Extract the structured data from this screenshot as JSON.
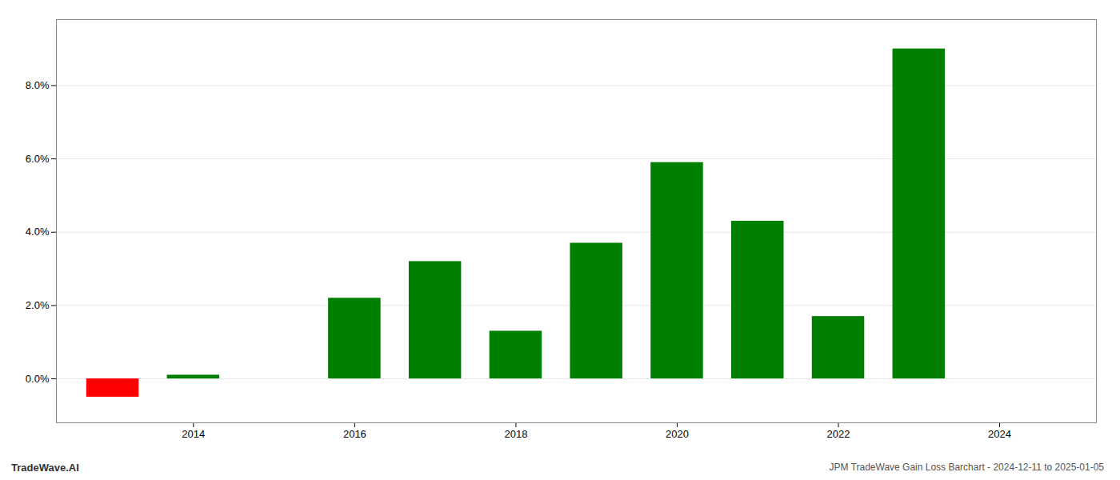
{
  "chart_data": {
    "type": "bar",
    "title": "JPM TradeWave Gain Loss Barchart - 2024-12-11 to 2025-01-05",
    "annotations": [
      "TradeWave.AI"
    ],
    "x": [
      2013,
      2014,
      2016,
      2017,
      2018,
      2019,
      2020,
      2021,
      2022,
      2023
    ],
    "values": [
      -0.005,
      0.001,
      0.022,
      0.032,
      0.013,
      0.037,
      0.059,
      0.043,
      0.017,
      0.09
    ],
    "colors": [
      "#ff0000",
      "#008000",
      "#008000",
      "#008000",
      "#008000",
      "#008000",
      "#008000",
      "#008000",
      "#008000",
      "#008000"
    ],
    "xlim": [
      2012.3,
      2025.2
    ],
    "xticks": [
      2014,
      2016,
      2018,
      2020,
      2022,
      2024
    ],
    "ylim": [
      -0.012,
      0.098
    ],
    "yticks": [
      {
        "value": 0.0,
        "label": "0.0%"
      },
      {
        "value": 0.02,
        "label": "2.0%"
      },
      {
        "value": 0.04,
        "label": "4.0%"
      },
      {
        "value": 0.06,
        "label": "6.0%"
      },
      {
        "value": 0.08,
        "label": "8.0%"
      }
    ],
    "grid": true
  }
}
